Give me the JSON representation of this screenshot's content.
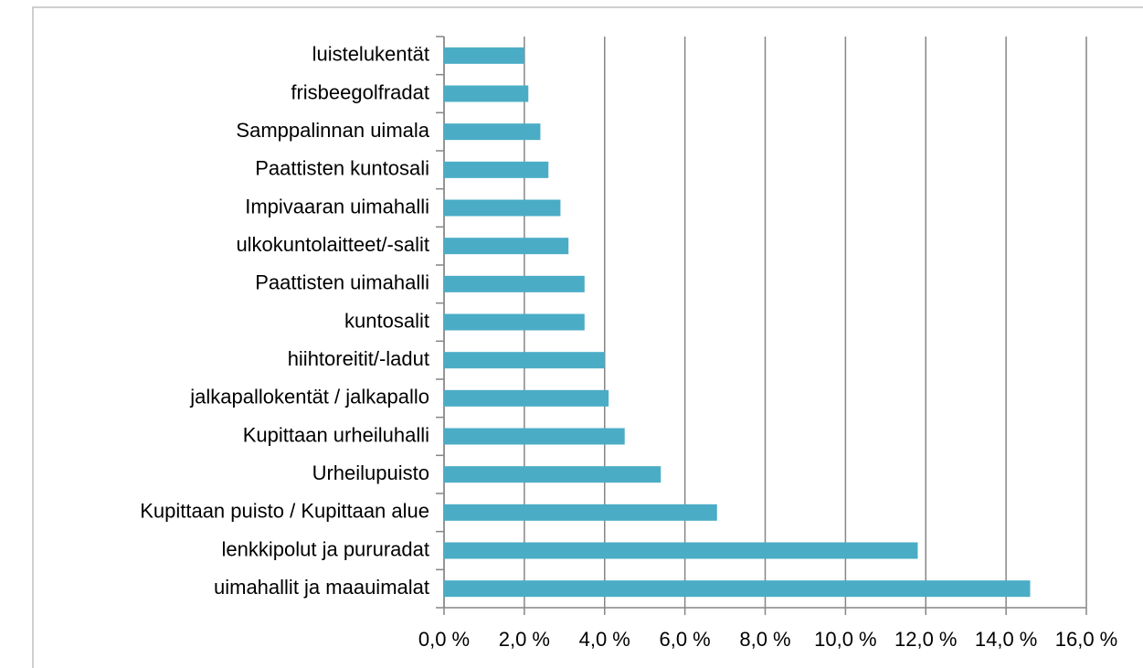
{
  "chart_data": {
    "type": "bar",
    "orientation": "horizontal",
    "categories": [
      "luistelukentät",
      "frisbeegolfradat",
      "Samppalinnan uimala",
      "Paattisten kuntosali",
      "Impivaaran uimahalli",
      "ulkokuntolaitteet/-salit",
      "Paattisten uimahalli",
      "kuntosalit",
      "hiihtoreitit/-ladut",
      "jalkapallokentät / jalkapallo",
      "Kupittaan urheiluhalli",
      "Urheilupuisto",
      "Kupittaan puisto / Kupittaan alue",
      "lenkkipolut ja pururadat",
      "uimahallit ja maauimalat"
    ],
    "values": [
      2.0,
      2.1,
      2.4,
      2.6,
      2.9,
      3.1,
      3.5,
      3.5,
      4.0,
      4.1,
      4.5,
      5.4,
      6.8,
      11.8,
      14.6
    ],
    "color": "#4bacc6",
    "xlim": [
      0,
      16
    ],
    "xticks": [
      {
        "value": 0,
        "label": "0,0 %"
      },
      {
        "value": 2,
        "label": "2,0 %"
      },
      {
        "value": 4,
        "label": "4,0 %"
      },
      {
        "value": 6,
        "label": "6,0 %"
      },
      {
        "value": 8,
        "label": "8,0 %"
      },
      {
        "value": 10,
        "label": "10,0 %"
      },
      {
        "value": 12,
        "label": "12,0 %"
      },
      {
        "value": 14,
        "label": "14,0 %"
      },
      {
        "value": 16,
        "label": "16,0 %"
      }
    ],
    "grid": true
  }
}
